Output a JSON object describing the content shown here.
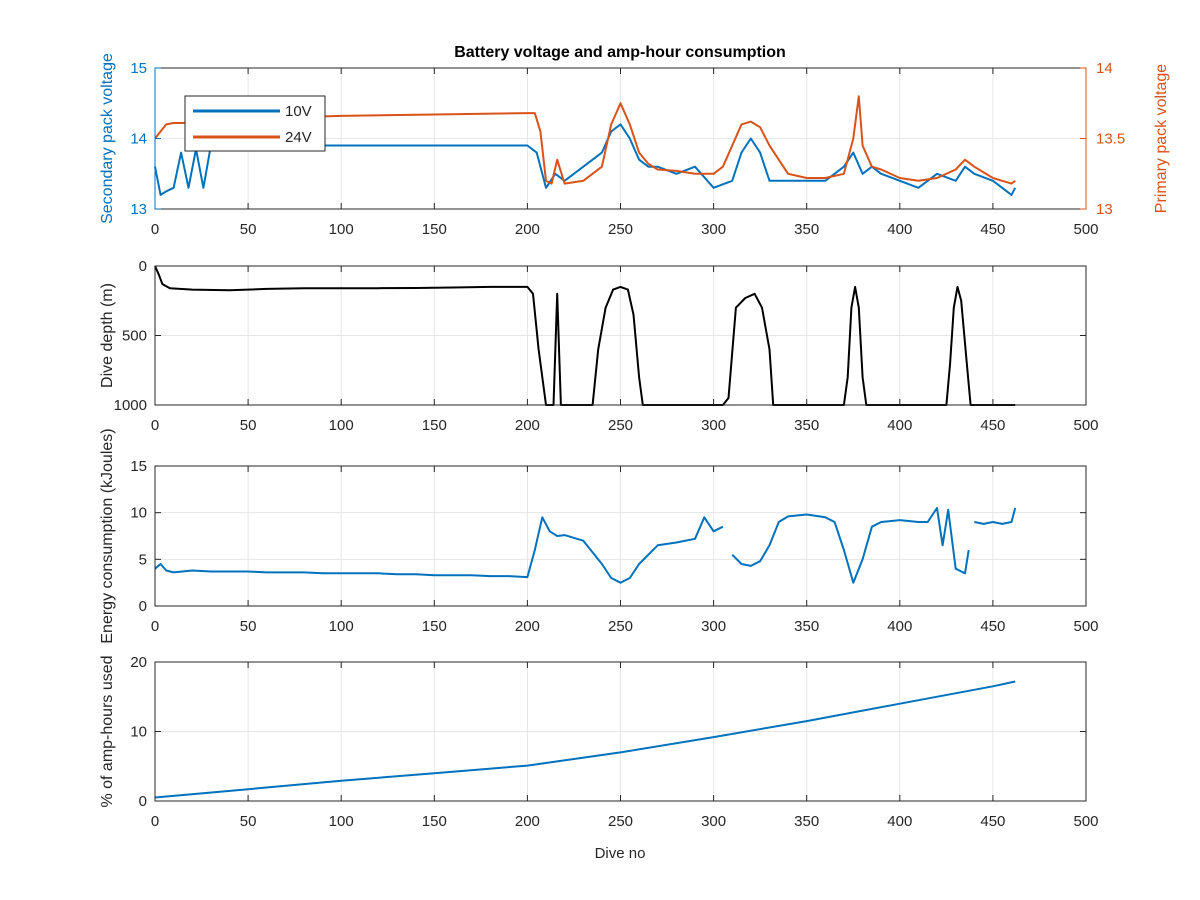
{
  "figure": {
    "title": "Battery voltage and amp-hour consumption",
    "xlabel": "Dive no"
  },
  "colors": {
    "blue": "#0072BD",
    "orange": "#D95319",
    "black": "#000000",
    "grid": "#e6e6e6",
    "axis": "#262626"
  },
  "chart_data": [
    {
      "type": "line",
      "xlim": [
        0,
        500
      ],
      "xticks": [
        0,
        50,
        100,
        150,
        200,
        250,
        300,
        350,
        400,
        450,
        500
      ],
      "ylabel": "Secondary pack voltage",
      "ylim": [
        13,
        15
      ],
      "yticks": [
        13,
        14,
        15
      ],
      "y2label": "Primary pack voltage",
      "y2lim": [
        13,
        14
      ],
      "y2ticks": [
        13,
        13.5,
        14
      ],
      "grid": true,
      "legend_position": "top-left",
      "series": [
        {
          "name": "10V",
          "axis": "left",
          "x": [
            0,
            3,
            6,
            10,
            14,
            18,
            22,
            26,
            30,
            40,
            60,
            80,
            100,
            120,
            140,
            160,
            180,
            200,
            205,
            210,
            215,
            220,
            230,
            240,
            245,
            250,
            255,
            260,
            265,
            270,
            280,
            290,
            300,
            310,
            315,
            320,
            325,
            330,
            340,
            350,
            360,
            370,
            375,
            380,
            385,
            390,
            400,
            410,
            420,
            430,
            435,
            440,
            450,
            455,
            460,
            462
          ],
          "y": [
            13.6,
            13.2,
            13.25,
            13.3,
            13.8,
            13.3,
            13.85,
            13.3,
            13.9,
            13.9,
            13.9,
            13.9,
            13.9,
            13.9,
            13.9,
            13.9,
            13.9,
            13.9,
            13.8,
            13.3,
            13.5,
            13.4,
            13.6,
            13.8,
            14.1,
            14.2,
            14.0,
            13.7,
            13.6,
            13.6,
            13.5,
            13.6,
            13.3,
            13.4,
            13.8,
            14.0,
            13.8,
            13.4,
            13.4,
            13.4,
            13.4,
            13.6,
            13.8,
            13.5,
            13.6,
            13.5,
            13.4,
            13.3,
            13.5,
            13.4,
            13.6,
            13.5,
            13.4,
            13.3,
            13.2,
            13.3
          ]
        },
        {
          "name": "24V",
          "axis": "right",
          "x": [
            0,
            3,
            6,
            10,
            15,
            20,
            50,
            100,
            150,
            200,
            204,
            207,
            210,
            213,
            216,
            220,
            230,
            240,
            245,
            250,
            255,
            260,
            265,
            270,
            280,
            290,
            300,
            305,
            310,
            315,
            320,
            325,
            330,
            340,
            350,
            360,
            370,
            375,
            378,
            380,
            385,
            390,
            400,
            410,
            420,
            430,
            435,
            440,
            450,
            455,
            460,
            462
          ],
          "y": [
            13.5,
            13.55,
            13.6,
            13.61,
            13.61,
            13.62,
            13.64,
            13.66,
            13.67,
            13.68,
            13.68,
            13.55,
            13.2,
            13.18,
            13.35,
            13.18,
            13.2,
            13.3,
            13.6,
            13.75,
            13.6,
            13.4,
            13.32,
            13.28,
            13.27,
            13.25,
            13.25,
            13.3,
            13.45,
            13.6,
            13.62,
            13.58,
            13.45,
            13.25,
            13.22,
            13.22,
            13.25,
            13.5,
            13.8,
            13.45,
            13.3,
            13.28,
            13.22,
            13.2,
            13.22,
            13.28,
            13.35,
            13.3,
            13.22,
            13.2,
            13.18,
            13.2
          ]
        }
      ]
    },
    {
      "type": "line",
      "xlim": [
        0,
        500
      ],
      "xticks": [
        0,
        50,
        100,
        150,
        200,
        250,
        300,
        350,
        400,
        450,
        500
      ],
      "ylabel": "Dive depth (m)",
      "ylim": [
        0,
        1000
      ],
      "yticks": [
        0,
        500,
        1000
      ],
      "y_reversed": true,
      "grid": true,
      "series": [
        {
          "axis": "left",
          "x": [
            0,
            2,
            4,
            8,
            20,
            40,
            60,
            80,
            100,
            120,
            140,
            160,
            180,
            200,
            203,
            206,
            210,
            212,
            214,
            216,
            218,
            220,
            235,
            238,
            242,
            246,
            250,
            254,
            257,
            260,
            262,
            265,
            280,
            300,
            305,
            308,
            312,
            317,
            322,
            326,
            330,
            332,
            340,
            360,
            370,
            372,
            374,
            376,
            378,
            380,
            382,
            384,
            400,
            420,
            425,
            427,
            429,
            431,
            433,
            436,
            438,
            440,
            450,
            460,
            462
          ],
          "y": [
            0,
            60,
            130,
            160,
            170,
            175,
            165,
            160,
            160,
            160,
            158,
            155,
            150,
            150,
            200,
            600,
            1000,
            1000,
            1000,
            200,
            1000,
            1000,
            1000,
            600,
            300,
            170,
            150,
            170,
            350,
            800,
            1000,
            1000,
            1000,
            1000,
            1000,
            950,
            300,
            230,
            200,
            300,
            600,
            1000,
            1000,
            1000,
            1000,
            800,
            300,
            150,
            300,
            800,
            1000,
            1000,
            1000,
            1000,
            1000,
            700,
            300,
            150,
            250,
            700,
            1000,
            1000,
            1000,
            1000,
            1000
          ]
        }
      ]
    },
    {
      "type": "line",
      "xlim": [
        0,
        500
      ],
      "xticks": [
        0,
        50,
        100,
        150,
        200,
        250,
        300,
        350,
        400,
        450,
        500
      ],
      "ylabel": "Energy consumption (kJoules)",
      "ylim": [
        0,
        15
      ],
      "yticks": [
        0,
        5,
        10,
        15
      ],
      "grid": true,
      "series": [
        {
          "axis": "left",
          "segments": [
            {
              "x": [
                0,
                3,
                6,
                10,
                20,
                30,
                40,
                50,
                60,
                70,
                80,
                90,
                100,
                110,
                120,
                130,
                140,
                150,
                160,
                170,
                180,
                190,
                200,
                204,
                208,
                212,
                216,
                220,
                230,
                240,
                245,
                250,
                255,
                260,
                270,
                280,
                290,
                295,
                300,
                305
              ],
              "y": [
                4.0,
                4.5,
                3.8,
                3.6,
                3.8,
                3.7,
                3.7,
                3.7,
                3.6,
                3.6,
                3.6,
                3.5,
                3.5,
                3.5,
                3.5,
                3.4,
                3.4,
                3.3,
                3.3,
                3.3,
                3.2,
                3.2,
                3.1,
                6.0,
                9.5,
                8.0,
                7.5,
                7.6,
                7.0,
                4.5,
                3.0,
                2.5,
                3.0,
                4.5,
                6.5,
                6.8,
                7.2,
                9.5,
                8.0,
                8.5
              ]
            },
            {
              "x": [
                310,
                315,
                320,
                325,
                330,
                335,
                340,
                350,
                360,
                365,
                370,
                375,
                380,
                385,
                390,
                400,
                410,
                415,
                420,
                423,
                426,
                430,
                435,
                437
              ],
              "y": [
                5.5,
                4.5,
                4.3,
                4.8,
                6.5,
                9.0,
                9.6,
                9.8,
                9.5,
                9.0,
                6.0,
                2.5,
                5.0,
                8.5,
                9.0,
                9.2,
                9.0,
                9.0,
                10.5,
                6.5,
                10.3,
                4.0,
                3.5,
                6.0
              ]
            },
            {
              "x": [
                440,
                445,
                450,
                455,
                460,
                462
              ],
              "y": [
                9.0,
                8.8,
                9.0,
                8.8,
                9.0,
                10.5
              ]
            }
          ]
        }
      ]
    },
    {
      "type": "line",
      "xlim": [
        0,
        500
      ],
      "xticks": [
        0,
        50,
        100,
        150,
        200,
        250,
        300,
        350,
        400,
        450,
        500
      ],
      "ylabel": "% of amp-hours used",
      "ylim": [
        0,
        20
      ],
      "yticks": [
        0,
        10,
        20
      ],
      "grid": true,
      "series": [
        {
          "axis": "left",
          "x": [
            0,
            50,
            100,
            150,
            200,
            250,
            300,
            350,
            400,
            450,
            462
          ],
          "y": [
            0.5,
            1.7,
            2.9,
            4.0,
            5.1,
            7.0,
            9.2,
            11.5,
            14.0,
            16.5,
            17.2
          ]
        }
      ]
    }
  ]
}
